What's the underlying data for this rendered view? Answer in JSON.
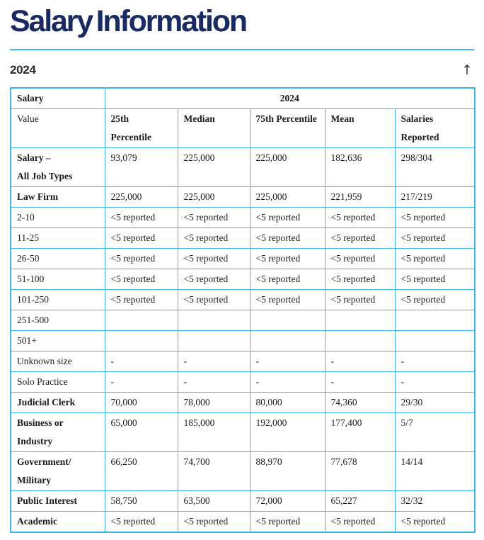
{
  "page": {
    "title": "Salary Information",
    "section_year": "2024",
    "back_to_top_icon": "↑"
  },
  "colors": {
    "accent_border": "#41b6e6",
    "title_navy": "#1a2b63",
    "heading_text": "#2d2d2d"
  },
  "table": {
    "corner_label": "Salary",
    "year_header": "2024",
    "columns": {
      "value": "Value",
      "p25": "25th Percentile",
      "median": "Median",
      "p75": "75th Percentile",
      "mean": "Mean",
      "reported": "Salaries\nReported"
    },
    "rows": [
      {
        "label": "Salary –\nAll Job Types",
        "bold": true,
        "values": [
          "93,079",
          "225,000",
          "225,000",
          "182,636",
          "298/304"
        ]
      },
      {
        "label": "Law Firm",
        "bold": true,
        "values": [
          "225,000",
          "225,000",
          "225,000",
          "221,959",
          "217/219"
        ]
      },
      {
        "label": "2-10",
        "bold": false,
        "values": [
          "<5 reported",
          "<5 reported",
          "<5 reported",
          "<5 reported",
          "<5 reported"
        ]
      },
      {
        "label": "11-25",
        "bold": false,
        "values": [
          "<5 reported",
          "<5 reported",
          "<5 reported",
          "<5 reported",
          "<5 reported"
        ]
      },
      {
        "label": "26-50",
        "bold": false,
        "values": [
          "<5 reported",
          "<5 reported",
          "<5 reported",
          "<5 reported",
          "<5 reported"
        ]
      },
      {
        "label": "51-100",
        "bold": false,
        "values": [
          "<5 reported",
          "<5 reported",
          "<5 reported",
          "<5 reported",
          "<5 reported"
        ]
      },
      {
        "label": "101-250",
        "bold": false,
        "values": [
          "<5 reported",
          "<5 reported",
          "<5 reported",
          "<5 reported",
          "<5 reported"
        ]
      },
      {
        "label": "251-500",
        "bold": false,
        "values": [
          "",
          "",
          "",
          "",
          ""
        ]
      },
      {
        "label": "501+",
        "bold": false,
        "values": [
          "",
          "",
          "",
          "",
          ""
        ]
      },
      {
        "label": "Unknown size",
        "bold": false,
        "values": [
          "-",
          "-",
          "-",
          "-",
          "-"
        ]
      },
      {
        "label": "Solo Practice",
        "bold": false,
        "values": [
          "-",
          "-",
          "-",
          "-",
          "-"
        ]
      },
      {
        "label": "Judicial Clerk",
        "bold": true,
        "values": [
          "70,000",
          "78,000",
          "80,000",
          "74,360",
          "29/30"
        ]
      },
      {
        "label": "Business or Industry",
        "bold": true,
        "values": [
          "65,000",
          "185,000",
          "192,000",
          "177,400",
          "5/7"
        ]
      },
      {
        "label": "Government/\nMilitary",
        "bold": true,
        "values": [
          "66,250",
          "74,700",
          "88,970",
          "77,678",
          "14/14"
        ]
      },
      {
        "label": "Public Interest",
        "bold": true,
        "values": [
          "58,750",
          "63,500",
          "72,000",
          "65,227",
          "32/32"
        ]
      },
      {
        "label": "Academic",
        "bold": true,
        "values": [
          "<5 reported",
          "<5 reported",
          "<5 reported",
          "<5 reported",
          "<5 reported"
        ]
      }
    ]
  }
}
